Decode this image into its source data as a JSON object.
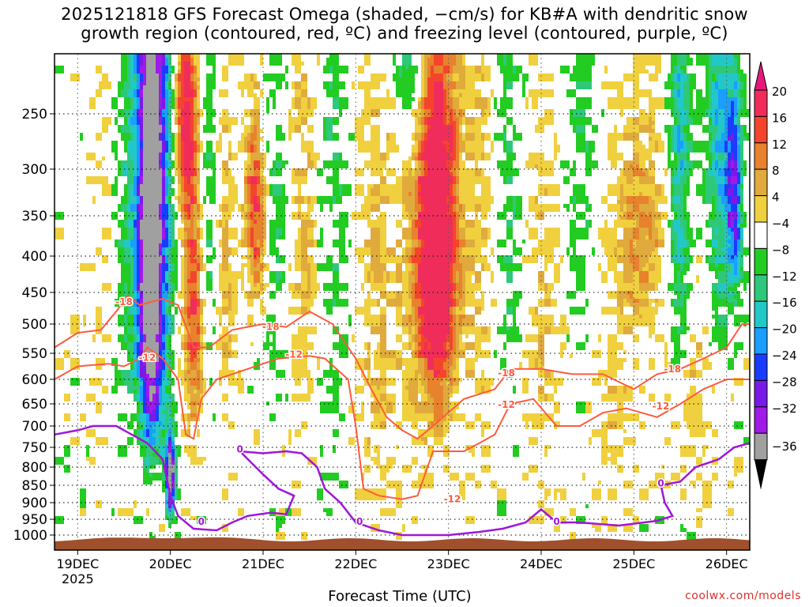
{
  "chart_data": {
    "type": "heatmap",
    "title_lines": [
      "2025121818 GFS Forecast Omega (shaded, −cm/s) for KB#A with dendritic snow",
      "growth region (contoured, red, ºC) and freezing level (contoured, purple, ºC)"
    ],
    "xlabel": "Forecast Time (UTC)",
    "ylabel": "",
    "credit": "coolwx.com/models",
    "x_ticks": [
      {
        "label": "19DEC",
        "sub": "2025",
        "t": 0
      },
      {
        "label": "20DEC",
        "t": 24
      },
      {
        "label": "21DEC",
        "t": 48
      },
      {
        "label": "22DEC",
        "t": 72
      },
      {
        "label": "23DEC",
        "t": 96
      },
      {
        "label": "24DEC",
        "t": 120
      },
      {
        "label": "25DEC",
        "t": 144
      },
      {
        "label": "26DEC",
        "t": 168
      }
    ],
    "x_range_hours": [
      -6,
      174
    ],
    "y_levels": [
      250,
      300,
      350,
      400,
      450,
      500,
      550,
      600,
      650,
      700,
      750,
      800,
      850,
      900,
      950,
      1000
    ],
    "y_range_hpa": [
      200,
      1020
    ],
    "colorbar": {
      "labels": [
        "20",
        "16",
        "12",
        "8",
        "4",
        "−4",
        "−8",
        "−12",
        "−16",
        "−20",
        "−24",
        "−28",
        "−32",
        "−36"
      ],
      "colors": [
        "#f02d5a",
        "#f4452c",
        "#e8822c",
        "#e0aa3c",
        "#f0d03e",
        "#ffffff",
        "#22cc22",
        "#2ec87a",
        "#22c8c8",
        "#1a9eff",
        "#1a3cff",
        "#7a1ae8",
        "#a01ae8",
        "#a0a0a0"
      ]
    },
    "shaded_features": [
      {
        "name": "ascent-core-19-20dec",
        "t_range": [
          10,
          27
        ],
        "p_range": [
          200,
          960
        ],
        "peak": -36
      },
      {
        "name": "descent-20dec",
        "t_range": [
          27,
          33
        ],
        "p_range": [
          230,
          670
        ],
        "peak": 20
      },
      {
        "name": "descent-21dec",
        "t_range": [
          43,
          50
        ],
        "p_range": [
          250,
          420
        ],
        "peak": 20
      },
      {
        "name": "descent-22-23dec",
        "t_range": [
          88,
          100
        ],
        "p_range": [
          230,
          640
        ],
        "peak": 20
      },
      {
        "name": "descent-25dec",
        "t_range": [
          142,
          153
        ],
        "p_range": [
          300,
          450
        ],
        "peak": 12
      },
      {
        "name": "ascent-26dec",
        "t_range": [
          165,
          170
        ],
        "p_range": [
          300,
          350
        ],
        "peak": -24
      }
    ],
    "contours": [
      {
        "label": "-18",
        "color": "#ff5a3c",
        "label_positions": [
          [
            12,
            465
          ],
          [
            50,
            505
          ],
          [
            111,
            588
          ],
          [
            154,
            580
          ]
        ]
      },
      {
        "label": "-12",
        "color": "#ff5a3c",
        "label_positions": [
          [
            18,
            558
          ],
          [
            56,
            552
          ],
          [
            97,
            890
          ],
          [
            111,
            652
          ],
          [
            151,
            655
          ]
        ]
      },
      {
        "label": "0",
        "color": "#a016d8",
        "label_positions": [
          [
            42,
            755
          ],
          [
            32,
            958
          ],
          [
            73,
            958
          ],
          [
            124,
            958
          ],
          [
            151,
            845
          ]
        ]
      }
    ]
  }
}
